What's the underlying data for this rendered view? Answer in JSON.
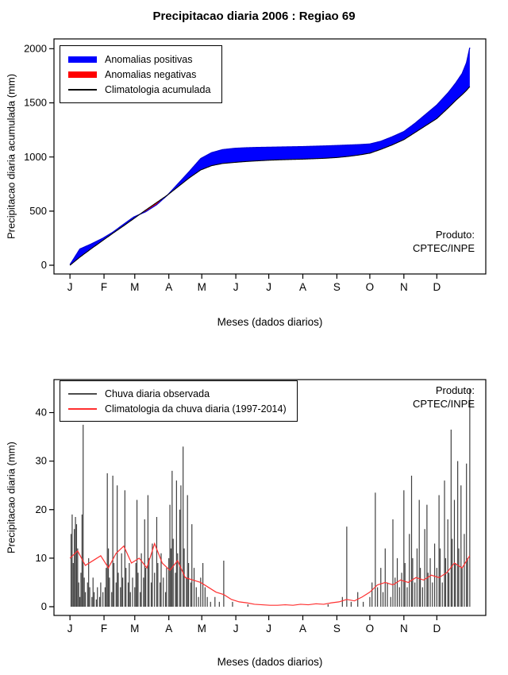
{
  "title": "Precipitacao diaria 2006 : Regiao 69",
  "produto": {
    "line1": "Produto:",
    "line2": "CPTEC/INPE"
  },
  "chart_data": [
    {
      "type": "area",
      "title": "Precipitacao diaria 2006 : Regiao 69",
      "xlabel": "Meses (dados diarios)",
      "ylabel": "Precipitacao diaria acumulada (mm)",
      "ylim": [
        0,
        2000
      ],
      "yticks": [
        0,
        500,
        1000,
        1500,
        2000
      ],
      "xtick_labels": [
        "J",
        "F",
        "M",
        "A",
        "M",
        "J",
        "J",
        "A",
        "S",
        "O",
        "N",
        "D"
      ],
      "xtick_days": [
        1,
        32,
        60,
        91,
        121,
        152,
        182,
        213,
        244,
        274,
        305,
        335
      ],
      "x_domain": [
        1,
        365
      ],
      "legend": [
        {
          "label": "Anomalias positivas",
          "color": "#0000ff",
          "style": "thick"
        },
        {
          "label": "Anomalias negativas",
          "color": "#ff0000",
          "style": "thick"
        },
        {
          "label": "Climatologia acumulada",
          "color": "#000000",
          "style": "line"
        }
      ],
      "annotation": "Produto: CPTEC/INPE",
      "colors": {
        "positive_fill": "#0000ff",
        "negative_fill": "#ff0000",
        "climatology": "#000000",
        "observed_edge": "#0000d8"
      },
      "series": {
        "x_days": [
          1,
          10,
          20,
          31,
          40,
          50,
          59,
          70,
          80,
          90,
          100,
          110,
          120,
          130,
          140,
          151,
          161,
          171,
          182,
          192,
          202,
          213,
          223,
          233,
          244,
          254,
          264,
          274,
          284,
          294,
          305,
          315,
          325,
          335,
          345,
          352,
          358,
          362,
          365
        ],
        "observed_cum": [
          5,
          150,
          195,
          250,
          305,
          380,
          445,
          495,
          560,
          650,
          760,
          870,
          985,
          1040,
          1068,
          1080,
          1085,
          1088,
          1090,
          1092,
          1094,
          1096,
          1099,
          1102,
          1106,
          1110,
          1114,
          1120,
          1145,
          1185,
          1235,
          1310,
          1395,
          1480,
          1590,
          1680,
          1770,
          1870,
          2010
        ],
        "climatology_cum": [
          0,
          75,
          150,
          230,
          295,
          365,
          430,
          510,
          580,
          650,
          730,
          810,
          880,
          920,
          940,
          950,
          958,
          964,
          970,
          974,
          977,
          980,
          984,
          988,
          995,
          1005,
          1018,
          1035,
          1070,
          1110,
          1160,
          1225,
          1290,
          1355,
          1450,
          1520,
          1575,
          1615,
          1650
        ]
      }
    },
    {
      "type": "bar",
      "xlabel": "Meses (dados diarios)",
      "ylabel": "Precipitacao diaria (mm)",
      "ylim": [
        0,
        45
      ],
      "yticks": [
        0,
        10,
        20,
        30,
        40
      ],
      "xtick_labels": [
        "J",
        "F",
        "M",
        "A",
        "M",
        "J",
        "J",
        "A",
        "S",
        "O",
        "N",
        "D"
      ],
      "xtick_days": [
        1,
        32,
        60,
        91,
        121,
        152,
        182,
        213,
        244,
        274,
        305,
        335
      ],
      "x_domain": [
        1,
        365
      ],
      "legend": [
        {
          "label": "Chuva diaria observada",
          "color": "#4d4d4d",
          "style": "line"
        },
        {
          "label": "Climatologia da chuva diaria (1997-2014)",
          "color": "#ff3030",
          "style": "line"
        }
      ],
      "annotation": "Produto: CPTEC/INPE",
      "colors": {
        "bars": "#404040",
        "climatology": "#ff3030"
      },
      "bars": [
        [
          2,
          15
        ],
        [
          3,
          19
        ],
        [
          4,
          9
        ],
        [
          5,
          16
        ],
        [
          6,
          18.5
        ],
        [
          7,
          17
        ],
        [
          8,
          12
        ],
        [
          9,
          5
        ],
        [
          10,
          2
        ],
        [
          11,
          7
        ],
        [
          12,
          19
        ],
        [
          13,
          37.5
        ],
        [
          14,
          6
        ],
        [
          15,
          3
        ],
        [
          17,
          5
        ],
        [
          18,
          10
        ],
        [
          19,
          4
        ],
        [
          21,
          2
        ],
        [
          22,
          6
        ],
        [
          23,
          3
        ],
        [
          25,
          1.5
        ],
        [
          26,
          4
        ],
        [
          28,
          2
        ],
        [
          29,
          5
        ],
        [
          31,
          3
        ],
        [
          33,
          4
        ],
        [
          34,
          8
        ],
        [
          35,
          27.5
        ],
        [
          36,
          12
        ],
        [
          37,
          6
        ],
        [
          39,
          3
        ],
        [
          40,
          27
        ],
        [
          41,
          9
        ],
        [
          43,
          5
        ],
        [
          44,
          25
        ],
        [
          45,
          7
        ],
        [
          47,
          4
        ],
        [
          48,
          11
        ],
        [
          49,
          6
        ],
        [
          51,
          24
        ],
        [
          52,
          8
        ],
        [
          54,
          5
        ],
        [
          55,
          9
        ],
        [
          56,
          3
        ],
        [
          58,
          6
        ],
        [
          60,
          4
        ],
        [
          61,
          9
        ],
        [
          62,
          22
        ],
        [
          63,
          7
        ],
        [
          65,
          3
        ],
        [
          66,
          11
        ],
        [
          68,
          6
        ],
        [
          69,
          18
        ],
        [
          70,
          8
        ],
        [
          72,
          23
        ],
        [
          73,
          10
        ],
        [
          75,
          5
        ],
        [
          76,
          13
        ],
        [
          78,
          7
        ],
        [
          80,
          18.5
        ],
        [
          81,
          9
        ],
        [
          83,
          5
        ],
        [
          84,
          11
        ],
        [
          86,
          6
        ],
        [
          88,
          3
        ],
        [
          89,
          8
        ],
        [
          91,
          10
        ],
        [
          92,
          21
        ],
        [
          93,
          12
        ],
        [
          94,
          28
        ],
        [
          95,
          14
        ],
        [
          97,
          7
        ],
        [
          98,
          26
        ],
        [
          99,
          11
        ],
        [
          101,
          20
        ],
        [
          102,
          25
        ],
        [
          104,
          33
        ],
        [
          105,
          12
        ],
        [
          107,
          6
        ],
        [
          108,
          23
        ],
        [
          109,
          9
        ],
        [
          111,
          5
        ],
        [
          112,
          17
        ],
        [
          114,
          8
        ],
        [
          116,
          4
        ],
        [
          118,
          2
        ],
        [
          120,
          6
        ],
        [
          122,
          9
        ],
        [
          124,
          4
        ],
        [
          126,
          2
        ],
        [
          129,
          1
        ],
        [
          133,
          2
        ],
        [
          137,
          1
        ],
        [
          141,
          9.5
        ],
        [
          149,
          1
        ],
        [
          163,
          0.5
        ],
        [
          236,
          0.5
        ],
        [
          249,
          2
        ],
        [
          253,
          16.5
        ],
        [
          257,
          1
        ],
        [
          263,
          3
        ],
        [
          268,
          1
        ],
        [
          274,
          2
        ],
        [
          276,
          5
        ],
        [
          279,
          23.5
        ],
        [
          281,
          4
        ],
        [
          284,
          8
        ],
        [
          286,
          3
        ],
        [
          288,
          12
        ],
        [
          290,
          5
        ],
        [
          293,
          2
        ],
        [
          295,
          18
        ],
        [
          297,
          6
        ],
        [
          299,
          10
        ],
        [
          301,
          4
        ],
        [
          303,
          7
        ],
        [
          305,
          24
        ],
        [
          306,
          9
        ],
        [
          308,
          4
        ],
        [
          310,
          15
        ],
        [
          312,
          27
        ],
        [
          313,
          10
        ],
        [
          315,
          5
        ],
        [
          317,
          12
        ],
        [
          319,
          22
        ],
        [
          320,
          8
        ],
        [
          322,
          4
        ],
        [
          324,
          16
        ],
        [
          326,
          21
        ],
        [
          327,
          7
        ],
        [
          329,
          10
        ],
        [
          331,
          5
        ],
        [
          333,
          13
        ],
        [
          335,
          8
        ],
        [
          337,
          23
        ],
        [
          338,
          12
        ],
        [
          340,
          5
        ],
        [
          342,
          26
        ],
        [
          343,
          10
        ],
        [
          345,
          18
        ],
        [
          346,
          7
        ],
        [
          348,
          36.5
        ],
        [
          349,
          14
        ],
        [
          351,
          22
        ],
        [
          352,
          9
        ],
        [
          354,
          30
        ],
        [
          355,
          12
        ],
        [
          357,
          25
        ],
        [
          358,
          8
        ],
        [
          360,
          15
        ],
        [
          362,
          29.5
        ],
        [
          363,
          10
        ],
        [
          365,
          45
        ]
      ],
      "climatology": {
        "x_days": [
          1,
          8,
          15,
          22,
          29,
          36,
          43,
          50,
          57,
          64,
          71,
          78,
          85,
          92,
          99,
          106,
          113,
          120,
          127,
          134,
          141,
          148,
          155,
          162,
          169,
          176,
          183,
          190,
          197,
          204,
          211,
          218,
          225,
          232,
          239,
          246,
          253,
          260,
          267,
          274,
          281,
          288,
          295,
          302,
          309,
          316,
          323,
          330,
          337,
          344,
          351,
          358,
          365
        ],
        "values": [
          10,
          11.5,
          8.5,
          9.5,
          10.5,
          8,
          11,
          12.5,
          9,
          10,
          8,
          13,
          9,
          7.5,
          9.5,
          6,
          5.5,
          5,
          4,
          3,
          2.5,
          1.5,
          1,
          0.8,
          0.5,
          0.4,
          0.3,
          0.3,
          0.4,
          0.3,
          0.5,
          0.4,
          0.6,
          0.5,
          0.8,
          1,
          1.5,
          1.2,
          2,
          3,
          4.5,
          5,
          4.5,
          5.5,
          5,
          6,
          5.5,
          6.5,
          6,
          7,
          9,
          8,
          10.5
        ]
      }
    }
  ]
}
